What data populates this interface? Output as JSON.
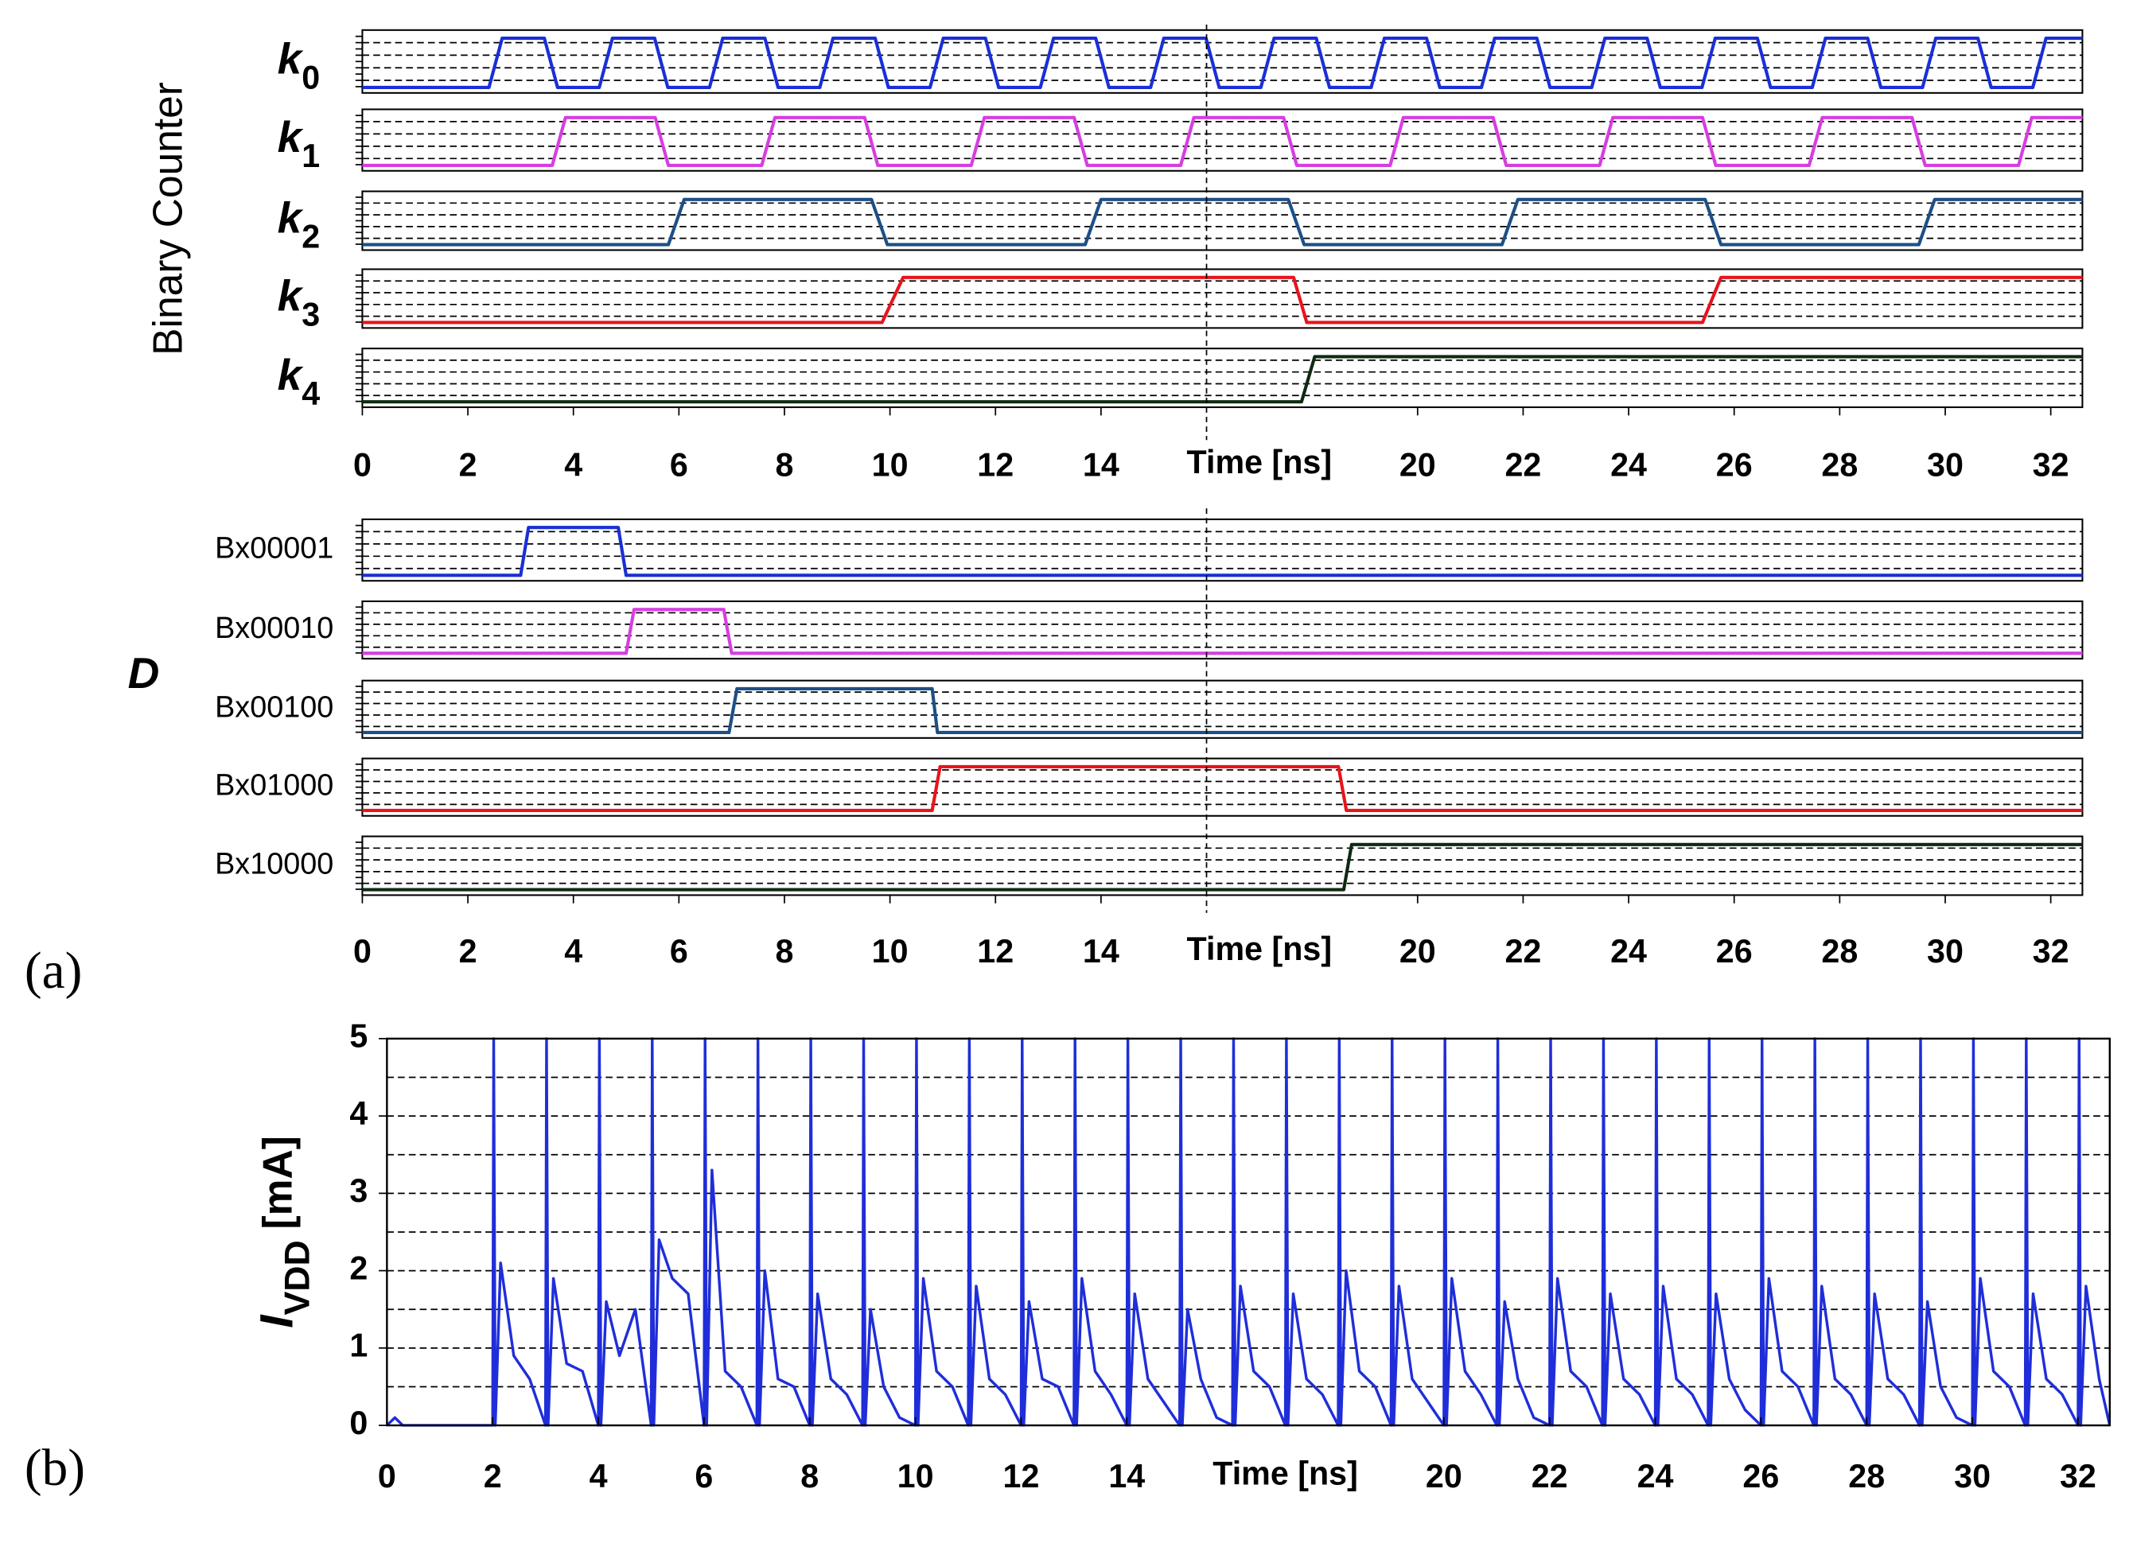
{
  "chart_data": [
    {
      "type": "waveform",
      "ylabel": "Binary Counter",
      "xlabel": "Time [ns]",
      "xlim": [
        0,
        32.6
      ],
      "xticks": [
        0,
        2,
        4,
        6,
        8,
        10,
        12,
        14,
        20,
        22,
        24,
        26,
        28,
        30,
        32
      ],
      "cursor": 16,
      "series": [
        {
          "name": "k",
          "subscript": "0",
          "color": "#1a2fd6",
          "x": [
            0,
            2.4,
            2.65,
            3.45,
            3.7,
            4.49,
            4.74,
            5.54,
            5.79,
            6.58,
            6.83,
            7.63,
            7.88,
            8.67,
            8.92,
            9.72,
            9.97,
            10.76,
            11.01,
            11.81,
            12.06,
            12.85,
            13.1,
            13.9,
            14.15,
            14.94,
            15.19,
            15.99,
            16.24,
            17.03,
            17.28,
            18.08,
            18.33,
            19.12,
            19.37,
            20.17,
            20.42,
            21.21,
            21.46,
            22.26,
            22.51,
            23.3,
            23.55,
            24.35,
            24.6,
            25.39,
            25.64,
            26.44,
            26.69,
            27.48,
            27.73,
            28.53,
            28.78,
            29.57,
            29.82,
            30.62,
            30.87,
            31.66,
            31.91,
            32.6
          ],
          "values": [
            0,
            0,
            1,
            1,
            0,
            0,
            1,
            1,
            0,
            0,
            1,
            1,
            0,
            0,
            1,
            1,
            0,
            0,
            1,
            1,
            0,
            0,
            1,
            1,
            0,
            0,
            1,
            1,
            0,
            0,
            1,
            1,
            0,
            0,
            1,
            1,
            0,
            0,
            1,
            1,
            0,
            0,
            1,
            1,
            0,
            0,
            1,
            1,
            0,
            0,
            1,
            1,
            0,
            0,
            1,
            1,
            0,
            0,
            1,
            1
          ]
        },
        {
          "name": "k",
          "subscript": "1",
          "color": "#d63ee0",
          "x": [
            0,
            3.6,
            3.85,
            5.55,
            5.8,
            7.57,
            7.82,
            9.52,
            9.77,
            11.54,
            11.79,
            13.49,
            13.74,
            15.51,
            15.76,
            17.46,
            17.71,
            19.48,
            19.73,
            21.43,
            21.68,
            23.45,
            23.7,
            25.4,
            25.65,
            27.42,
            27.67,
            29.37,
            29.62,
            31.39,
            31.64,
            32.6
          ],
          "values": [
            0,
            0,
            1,
            1,
            0,
            0,
            1,
            1,
            0,
            0,
            1,
            1,
            0,
            0,
            1,
            1,
            0,
            0,
            1,
            1,
            0,
            0,
            1,
            1,
            0,
            0,
            1,
            1,
            0,
            0,
            1,
            1
          ]
        },
        {
          "name": "k",
          "subscript": "2",
          "color": "#1d4f86",
          "x": [
            0,
            5.8,
            6.1,
            9.65,
            9.95,
            13.7,
            14.0,
            17.55,
            17.85,
            21.6,
            21.9,
            25.45,
            25.75,
            29.5,
            29.8,
            32.6
          ],
          "values": [
            0,
            0,
            1,
            1,
            0,
            0,
            1,
            1,
            0,
            0,
            1,
            1,
            0,
            0,
            1,
            1
          ]
        },
        {
          "name": "k",
          "subscript": "3",
          "color": "#e8141c",
          "x": [
            0,
            9.85,
            10.25,
            17.65,
            17.9,
            25.4,
            25.75,
            32.6
          ],
          "values": [
            0,
            0,
            1,
            1,
            0,
            0,
            1,
            1
          ]
        },
        {
          "name": "k",
          "subscript": "4",
          "color": "#0f2a12",
          "x": [
            0,
            17.8,
            18.05,
            32.6
          ],
          "values": [
            0,
            0,
            1,
            1
          ]
        }
      ]
    },
    {
      "type": "waveform",
      "ylabel": "D",
      "xlabel": "Time [ns]",
      "panel_label": "(a)",
      "xlim": [
        0,
        32.6
      ],
      "xticks": [
        0,
        2,
        4,
        6,
        8,
        10,
        12,
        14,
        20,
        22,
        24,
        26,
        28,
        30,
        32
      ],
      "cursor": 16,
      "series": [
        {
          "name": "Bx00001",
          "color": "#1a2fd6",
          "x": [
            0,
            3.0,
            3.15,
            4.85,
            5.0,
            32.6
          ],
          "values": [
            0,
            0,
            1,
            1,
            0,
            0
          ]
        },
        {
          "name": "Bx00010",
          "color": "#d63ee0",
          "x": [
            0,
            5.0,
            5.15,
            6.85,
            7.0,
            32.6
          ],
          "values": [
            0,
            0,
            1,
            1,
            0,
            0
          ]
        },
        {
          "name": "Bx00100",
          "color": "#1d4f86",
          "x": [
            0,
            6.95,
            7.1,
            10.8,
            10.9,
            32.6
          ],
          "values": [
            0,
            0,
            1,
            1,
            0,
            0
          ]
        },
        {
          "name": "Bx01000",
          "color": "#e8141c",
          "x": [
            0,
            10.8,
            10.95,
            18.5,
            18.65,
            32.6
          ],
          "values": [
            0,
            0,
            1,
            1,
            0,
            0
          ]
        },
        {
          "name": "Bx10000",
          "color": "#0f2a12",
          "x": [
            0,
            18.6,
            18.75,
            32.6
          ],
          "values": [
            0,
            0,
            1,
            1
          ]
        }
      ]
    },
    {
      "type": "line",
      "ylabel": {
        "text": "I",
        "subscript": "VDD",
        "unit": "[mA]"
      },
      "xlabel": "Time [ns]",
      "panel_label": "(b)",
      "xlim": [
        0,
        32.6
      ],
      "xticks": [
        0,
        2,
        4,
        6,
        8,
        10,
        12,
        14,
        20,
        22,
        24,
        26,
        28,
        30,
        32
      ],
      "ylim": [
        0,
        5
      ],
      "yticks": [
        0,
        1,
        2,
        3,
        4,
        5
      ],
      "ygrid": [
        0.5,
        1,
        1.5,
        2,
        2.5,
        3,
        3.5,
        4,
        4.5
      ],
      "series": [
        {
          "name": "I_VDD",
          "color": "#1f2ed9",
          "x": [
            0,
            0.15,
            0.3,
            2,
            2.02,
            2.05,
            2.15,
            2.4,
            2.7,
            3,
            3.02,
            3.05,
            3.15,
            3.4,
            3.7,
            4,
            4.02,
            4.05,
            4.15,
            4.4,
            4.7,
            5,
            5.02,
            5.05,
            5.15,
            5.4,
            5.7,
            6,
            6.02,
            6.05,
            6.15,
            6.4,
            6.7,
            7,
            7.02,
            7.05,
            7.15,
            7.4,
            7.7,
            8,
            8.02,
            8.05,
            8.15,
            8.4,
            8.7,
            9,
            9.02,
            9.05,
            9.15,
            9.4,
            9.7,
            10,
            10.02,
            10.05,
            10.15,
            10.4,
            10.7,
            11,
            11.02,
            11.05,
            11.15,
            11.4,
            11.7,
            12,
            12.02,
            12.05,
            12.15,
            12.4,
            12.7,
            13,
            13.02,
            13.05,
            13.15,
            13.4,
            13.7,
            14,
            14.02,
            14.05,
            14.15,
            14.4,
            14.7,
            15,
            15.02,
            15.05,
            15.15,
            15.4,
            15.7,
            16,
            16.02,
            16.05,
            16.15,
            16.4,
            16.7,
            17,
            17.02,
            17.05,
            17.15,
            17.4,
            17.7,
            18,
            18.02,
            18.05,
            18.15,
            18.4,
            18.7,
            19,
            19.02,
            19.05,
            19.15,
            19.4,
            19.7,
            20,
            20.02,
            20.05,
            20.15,
            20.4,
            20.7,
            21,
            21.02,
            21.05,
            21.15,
            21.4,
            21.7,
            22,
            22.02,
            22.05,
            22.15,
            22.4,
            22.7,
            23,
            23.02,
            23.05,
            23.15,
            23.4,
            23.7,
            24,
            24.02,
            24.05,
            24.15,
            24.4,
            24.7,
            25,
            25.02,
            25.05,
            25.15,
            25.4,
            25.7,
            26,
            26.02,
            26.05,
            26.15,
            26.4,
            26.7,
            27,
            27.02,
            27.05,
            27.15,
            27.4,
            27.7,
            28,
            28.02,
            28.05,
            28.15,
            28.4,
            28.7,
            29,
            29.02,
            29.05,
            29.15,
            29.4,
            29.7,
            30,
            30.02,
            30.05,
            30.15,
            30.4,
            30.7,
            31,
            31.02,
            31.05,
            31.15,
            31.4,
            31.7,
            32,
            32.02,
            32.05,
            32.15,
            32.4,
            32.6
          ],
          "values": [
            0,
            0.1,
            0,
            0,
            5,
            0,
            2.1,
            0.9,
            0.6,
            0,
            5,
            0,
            1.9,
            0.8,
            0.7,
            0,
            5,
            0,
            1.6,
            0.9,
            1.5,
            0,
            5,
            0,
            2.4,
            1.9,
            1.7,
            0,
            5,
            0,
            3.3,
            0.7,
            0.5,
            0,
            5,
            0,
            2.0,
            0.6,
            0.5,
            0,
            5,
            0,
            1.7,
            0.6,
            0.4,
            0,
            5,
            0,
            1.5,
            0.5,
            0.1,
            0,
            5,
            0,
            1.9,
            0.7,
            0.5,
            0,
            5,
            0,
            1.8,
            0.6,
            0.4,
            0,
            5,
            0,
            1.6,
            0.6,
            0.5,
            0,
            5,
            0,
            1.9,
            0.7,
            0.4,
            0,
            5,
            0,
            1.7,
            0.6,
            0.3,
            0,
            5,
            0,
            1.5,
            0.6,
            0.1,
            0,
            5,
            0,
            1.8,
            0.7,
            0.5,
            0,
            5,
            0,
            1.7,
            0.6,
            0.4,
            0,
            5,
            0,
            2.0,
            0.7,
            0.5,
            0,
            5,
            0,
            1.8,
            0.6,
            0.3,
            0,
            5,
            0,
            1.9,
            0.7,
            0.4,
            0,
            5,
            0,
            1.6,
            0.6,
            0.1,
            0,
            5,
            0,
            1.9,
            0.7,
            0.5,
            0,
            5,
            0,
            1.7,
            0.6,
            0.4,
            0,
            5,
            0,
            1.8,
            0.6,
            0.4,
            0,
            5,
            0,
            1.7,
            0.6,
            0.2,
            0,
            5,
            0,
            1.9,
            0.7,
            0.5,
            0,
            5,
            0,
            1.8,
            0.6,
            0.4,
            0,
            5,
            0,
            1.7,
            0.6,
            0.4,
            0,
            5,
            0,
            1.6,
            0.5,
            0.1,
            0,
            5,
            0,
            1.9,
            0.7,
            0.5,
            0,
            5,
            0,
            1.7,
            0.6,
            0.4,
            0,
            5,
            0,
            1.8,
            0.6,
            0
          ]
        }
      ]
    }
  ]
}
